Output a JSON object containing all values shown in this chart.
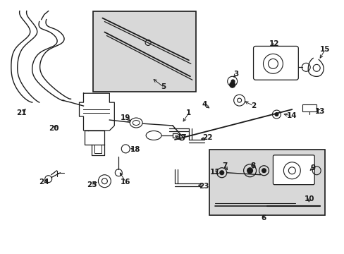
{
  "bg_color": "#ffffff",
  "line_color": "#1a1a1a",
  "box_fill": "#d8d8d8",
  "fig_width": 4.89,
  "fig_height": 3.6,
  "dpi": 100
}
